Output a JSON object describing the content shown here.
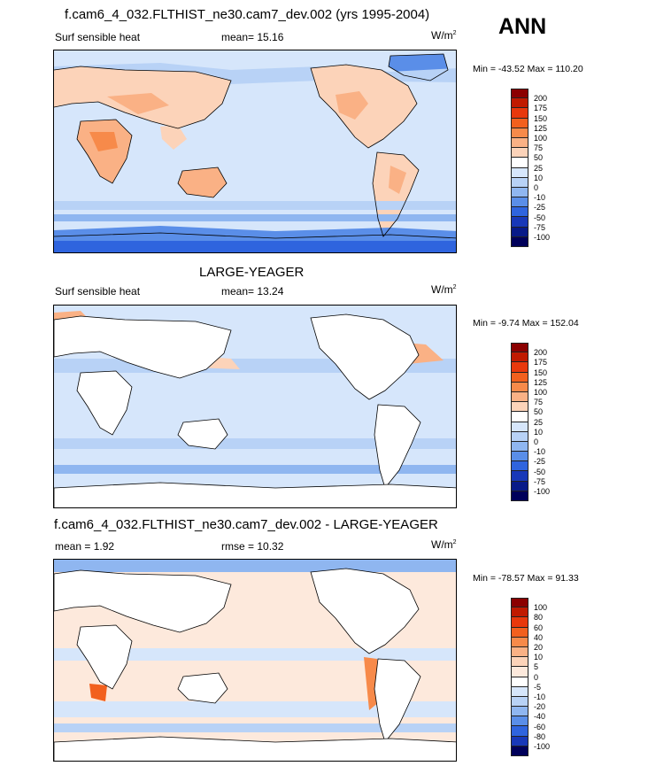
{
  "season": "ANN",
  "panels": [
    {
      "id": "test",
      "title": "f.cam6_4_032.FLTHIST_ne30.cam7_dev.002 (yrs 1995-2004)",
      "left_label": "Surf sensible heat",
      "stat_label": "mean=  15.16",
      "units_base": "W/m",
      "units_exp": "2",
      "minmax": "Min = -43.52 Max = 110.20",
      "levels": [
        "200",
        "175",
        "150",
        "125",
        "100",
        "75",
        "50",
        "25",
        "10",
        "0",
        "-10",
        "-25",
        "-50",
        "-75",
        "-100"
      ],
      "colors": [
        "#8b0000",
        "#c01a00",
        "#e8380c",
        "#f2601e",
        "#f78a4a",
        "#fab185",
        "#fcd3b9",
        "#ffffff",
        "#d6e6fb",
        "#b8d2f6",
        "#8fb6f0",
        "#5a8ee8",
        "#2f64de",
        "#1838b8",
        "#081a88",
        "#00005a"
      ]
    },
    {
      "id": "ctrl",
      "title": "LARGE-YEAGER",
      "left_label": "Surf sensible heat",
      "stat_label": "mean=  13.24",
      "units_base": "W/m",
      "units_exp": "2",
      "minmax": "Min =  -9.74 Max = 152.04",
      "levels": [
        "200",
        "175",
        "150",
        "125",
        "100",
        "75",
        "50",
        "25",
        "10",
        "0",
        "-10",
        "-25",
        "-50",
        "-75",
        "-100"
      ],
      "colors": [
        "#8b0000",
        "#c01a00",
        "#e8380c",
        "#f2601e",
        "#f78a4a",
        "#fab185",
        "#fcd3b9",
        "#ffffff",
        "#d6e6fb",
        "#b8d2f6",
        "#8fb6f0",
        "#5a8ee8",
        "#2f64de",
        "#1838b8",
        "#081a88",
        "#00005a"
      ]
    },
    {
      "id": "diff",
      "title": "f.cam6_4_032.FLTHIST_ne30.cam7_dev.002 - LARGE-YEAGER",
      "left_label": "mean =   1.92",
      "stat_label": "rmse =  10.32",
      "units_base": "W/m",
      "units_exp": "2",
      "minmax": "Min = -78.57 Max =  91.33",
      "levels": [
        "100",
        "80",
        "60",
        "40",
        "20",
        "10",
        "5",
        "0",
        "-5",
        "-10",
        "-20",
        "-40",
        "-60",
        "-80",
        "-100"
      ],
      "colors": [
        "#8b0000",
        "#c01a00",
        "#e8380c",
        "#f2601e",
        "#f78a4a",
        "#fab185",
        "#fcd3b9",
        "#fde9dc",
        "#ffffff",
        "#d6e6fb",
        "#b8d2f6",
        "#8fb6f0",
        "#5a8ee8",
        "#2f64de",
        "#1838b8",
        "#00005a"
      ]
    }
  ]
}
